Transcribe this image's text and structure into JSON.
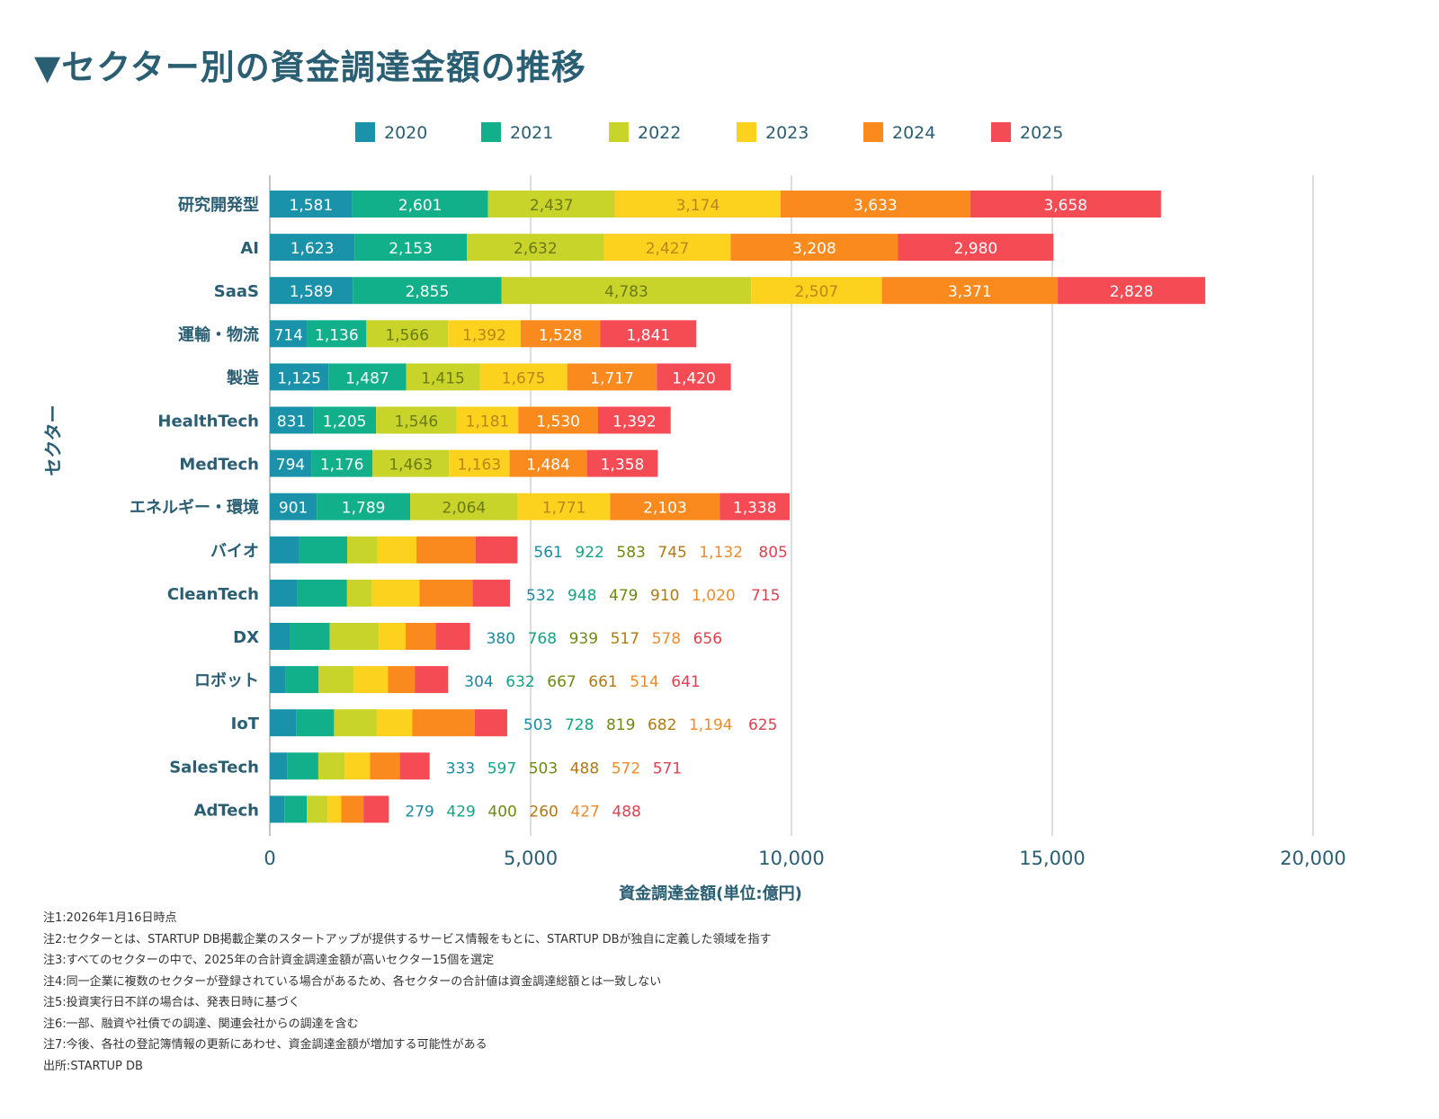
{
  "title": "▼セクター別の資金調達金額の推移",
  "chart_data": {
    "type": "bar",
    "orientation": "horizontal",
    "stacked": true,
    "xlabel": "資金調達金額(単位:億円)",
    "ylabel": "セクター",
    "xlim": [
      0,
      20000
    ],
    "xticks": [
      0,
      5000,
      10000,
      15000,
      20000
    ],
    "xtick_labels": [
      "0",
      "5,000",
      "10,000",
      "15,000",
      "20,000"
    ],
    "grid": "vertical",
    "legend_position": "top",
    "categories": [
      "研究開発型",
      "AI",
      "SaaS",
      "運輸・物流",
      "製造",
      "HealthTech",
      "MedTech",
      "エネルギー・環境",
      "バイオ",
      "CleanTech",
      "DX",
      "ロボット",
      "IoT",
      "SalesTech",
      "AdTech"
    ],
    "series": [
      {
        "name": "2020",
        "color": "#1a93aa",
        "values": [
          1581,
          1623,
          1589,
          714,
          1125,
          831,
          794,
          901,
          561,
          532,
          380,
          304,
          503,
          333,
          279
        ]
      },
      {
        "name": "2021",
        "color": "#12b08a",
        "values": [
          2601,
          2153,
          2855,
          1136,
          1487,
          1205,
          1176,
          1789,
          922,
          948,
          768,
          632,
          728,
          597,
          429
        ]
      },
      {
        "name": "2022",
        "color": "#c8d42a",
        "values": [
          2437,
          2632,
          4783,
          1566,
          1415,
          1546,
          1463,
          2064,
          583,
          479,
          939,
          667,
          819,
          503,
          400
        ]
      },
      {
        "name": "2023",
        "color": "#fdd21f",
        "values": [
          3174,
          2427,
          2507,
          1392,
          1675,
          1181,
          1163,
          1771,
          745,
          910,
          517,
          661,
          682,
          488,
          260
        ]
      },
      {
        "name": "2024",
        "color": "#fa8a1e",
        "values": [
          3633,
          3208,
          3371,
          1528,
          1717,
          1530,
          1484,
          2103,
          1132,
          1020,
          578,
          514,
          1194,
          572,
          427
        ]
      },
      {
        "name": "2025",
        "color": "#f44b55",
        "values": [
          3658,
          2980,
          2828,
          1841,
          1420,
          1392,
          1358,
          1338,
          805,
          715,
          656,
          641,
          625,
          571,
          488
        ]
      }
    ]
  },
  "notes": [
    "注1:2026年1月16日時点",
    "注2:セクターとは、STARTUP DB掲載企業のスタートアップが提供するサービス情報をもとに、STARTUP DBが独自に定義した領域を指す",
    "注3:すべてのセクターの中で、2025年の合計資金調達金額が高いセクター15個を選定",
    "注4:同一企業に複数のセクターが登録されている場合があるため、各セクターの合計値は資金調達総額とは一致しない",
    "注5:投資実行日不詳の場合は、発表日時に基づく",
    "注6:一部、融資や社債での調達、関連会社からの調達を含む",
    "注7:今後、各社の登記簿情報の更新にあわせ、資金調達金額が増加する可能性がある",
    "出所:STARTUP DB"
  ]
}
